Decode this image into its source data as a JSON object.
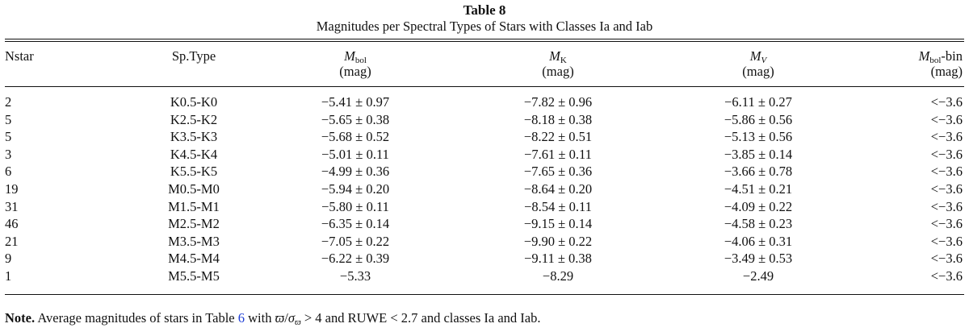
{
  "table": {
    "label": "Table 8",
    "caption": "Magnitudes per Spectral Types of Stars with Classes Ia and Iab"
  },
  "headers": {
    "nstar": "Nstar",
    "sptype": "Sp.Type",
    "mbol": {
      "symbol": "M",
      "sub": "bol",
      "unit": "(mag)"
    },
    "mk": {
      "symbol": "M",
      "sub": "K",
      "unit": "(mag)"
    },
    "mv": {
      "symbol": "M",
      "sub": "V",
      "unit": "(mag)"
    },
    "mbolbin": {
      "symbol": "M",
      "sub": "bol",
      "suffix": "-bin",
      "unit": "(mag)"
    }
  },
  "rows": [
    {
      "nstar": "2",
      "sptype": "K0.5-K0",
      "mbol": "−5.41 ± 0.97",
      "mk": "−7.82 ± 0.96",
      "mv": "−6.11 ± 0.27",
      "bin": "<−3.6"
    },
    {
      "nstar": "5",
      "sptype": "K2.5-K2",
      "mbol": "−5.65 ± 0.38",
      "mk": "−8.18 ± 0.38",
      "mv": "−5.86 ± 0.56",
      "bin": "<−3.6"
    },
    {
      "nstar": "5",
      "sptype": "K3.5-K3",
      "mbol": "−5.68 ± 0.52",
      "mk": "−8.22 ± 0.51",
      "mv": "−5.13 ± 0.56",
      "bin": "<−3.6"
    },
    {
      "nstar": "3",
      "sptype": "K4.5-K4",
      "mbol": "−5.01 ± 0.11",
      "mk": "−7.61 ± 0.11",
      "mv": "−3.85 ± 0.14",
      "bin": "<−3.6"
    },
    {
      "nstar": "6",
      "sptype": "K5.5-K5",
      "mbol": "−4.99 ± 0.36",
      "mk": "−7.65 ± 0.36",
      "mv": "−3.66 ± 0.78",
      "bin": "<−3.6"
    },
    {
      "nstar": "19",
      "sptype": "M0.5-M0",
      "mbol": "−5.94 ± 0.20",
      "mk": "−8.64 ± 0.20",
      "mv": "−4.51 ± 0.21",
      "bin": "<−3.6"
    },
    {
      "nstar": "31",
      "sptype": "M1.5-M1",
      "mbol": "−5.80 ± 0.11",
      "mk": "−8.54 ± 0.11",
      "mv": "−4.09 ± 0.22",
      "bin": "<−3.6"
    },
    {
      "nstar": "46",
      "sptype": "M2.5-M2",
      "mbol": "−6.35 ± 0.14",
      "mk": "−9.15 ± 0.14",
      "mv": "−4.58 ± 0.23",
      "bin": "<−3.6"
    },
    {
      "nstar": "21",
      "sptype": "M3.5-M3",
      "mbol": "−7.05 ± 0.22",
      "mk": "−9.90 ± 0.22",
      "mv": "−4.06 ± 0.31",
      "bin": "<−3.6"
    },
    {
      "nstar": "9",
      "sptype": "M4.5-M4",
      "mbol": "−6.22 ± 0.39",
      "mk": "−9.11 ± 0.38",
      "mv": "−3.49 ± 0.53",
      "bin": "<−3.6"
    },
    {
      "nstar": "1",
      "sptype": "M5.5-M5",
      "mbol": "−5.33",
      "mk": "−8.29",
      "mv": "−2.49",
      "bin": "<−3.6"
    }
  ],
  "note": {
    "label": "Note.",
    "text_before_link": " Average magnitudes of stars in Table ",
    "link": "6",
    "text_with": " with ",
    "parallax": "ϖ",
    "slash": "/",
    "sigma": "σ",
    "sigma_sub": "ϖ",
    "text_after": " > 4 and RUWE < 2.7 and classes Ia and Iab."
  },
  "colors": {
    "text": "#111111",
    "link": "#1f3fd6"
  }
}
